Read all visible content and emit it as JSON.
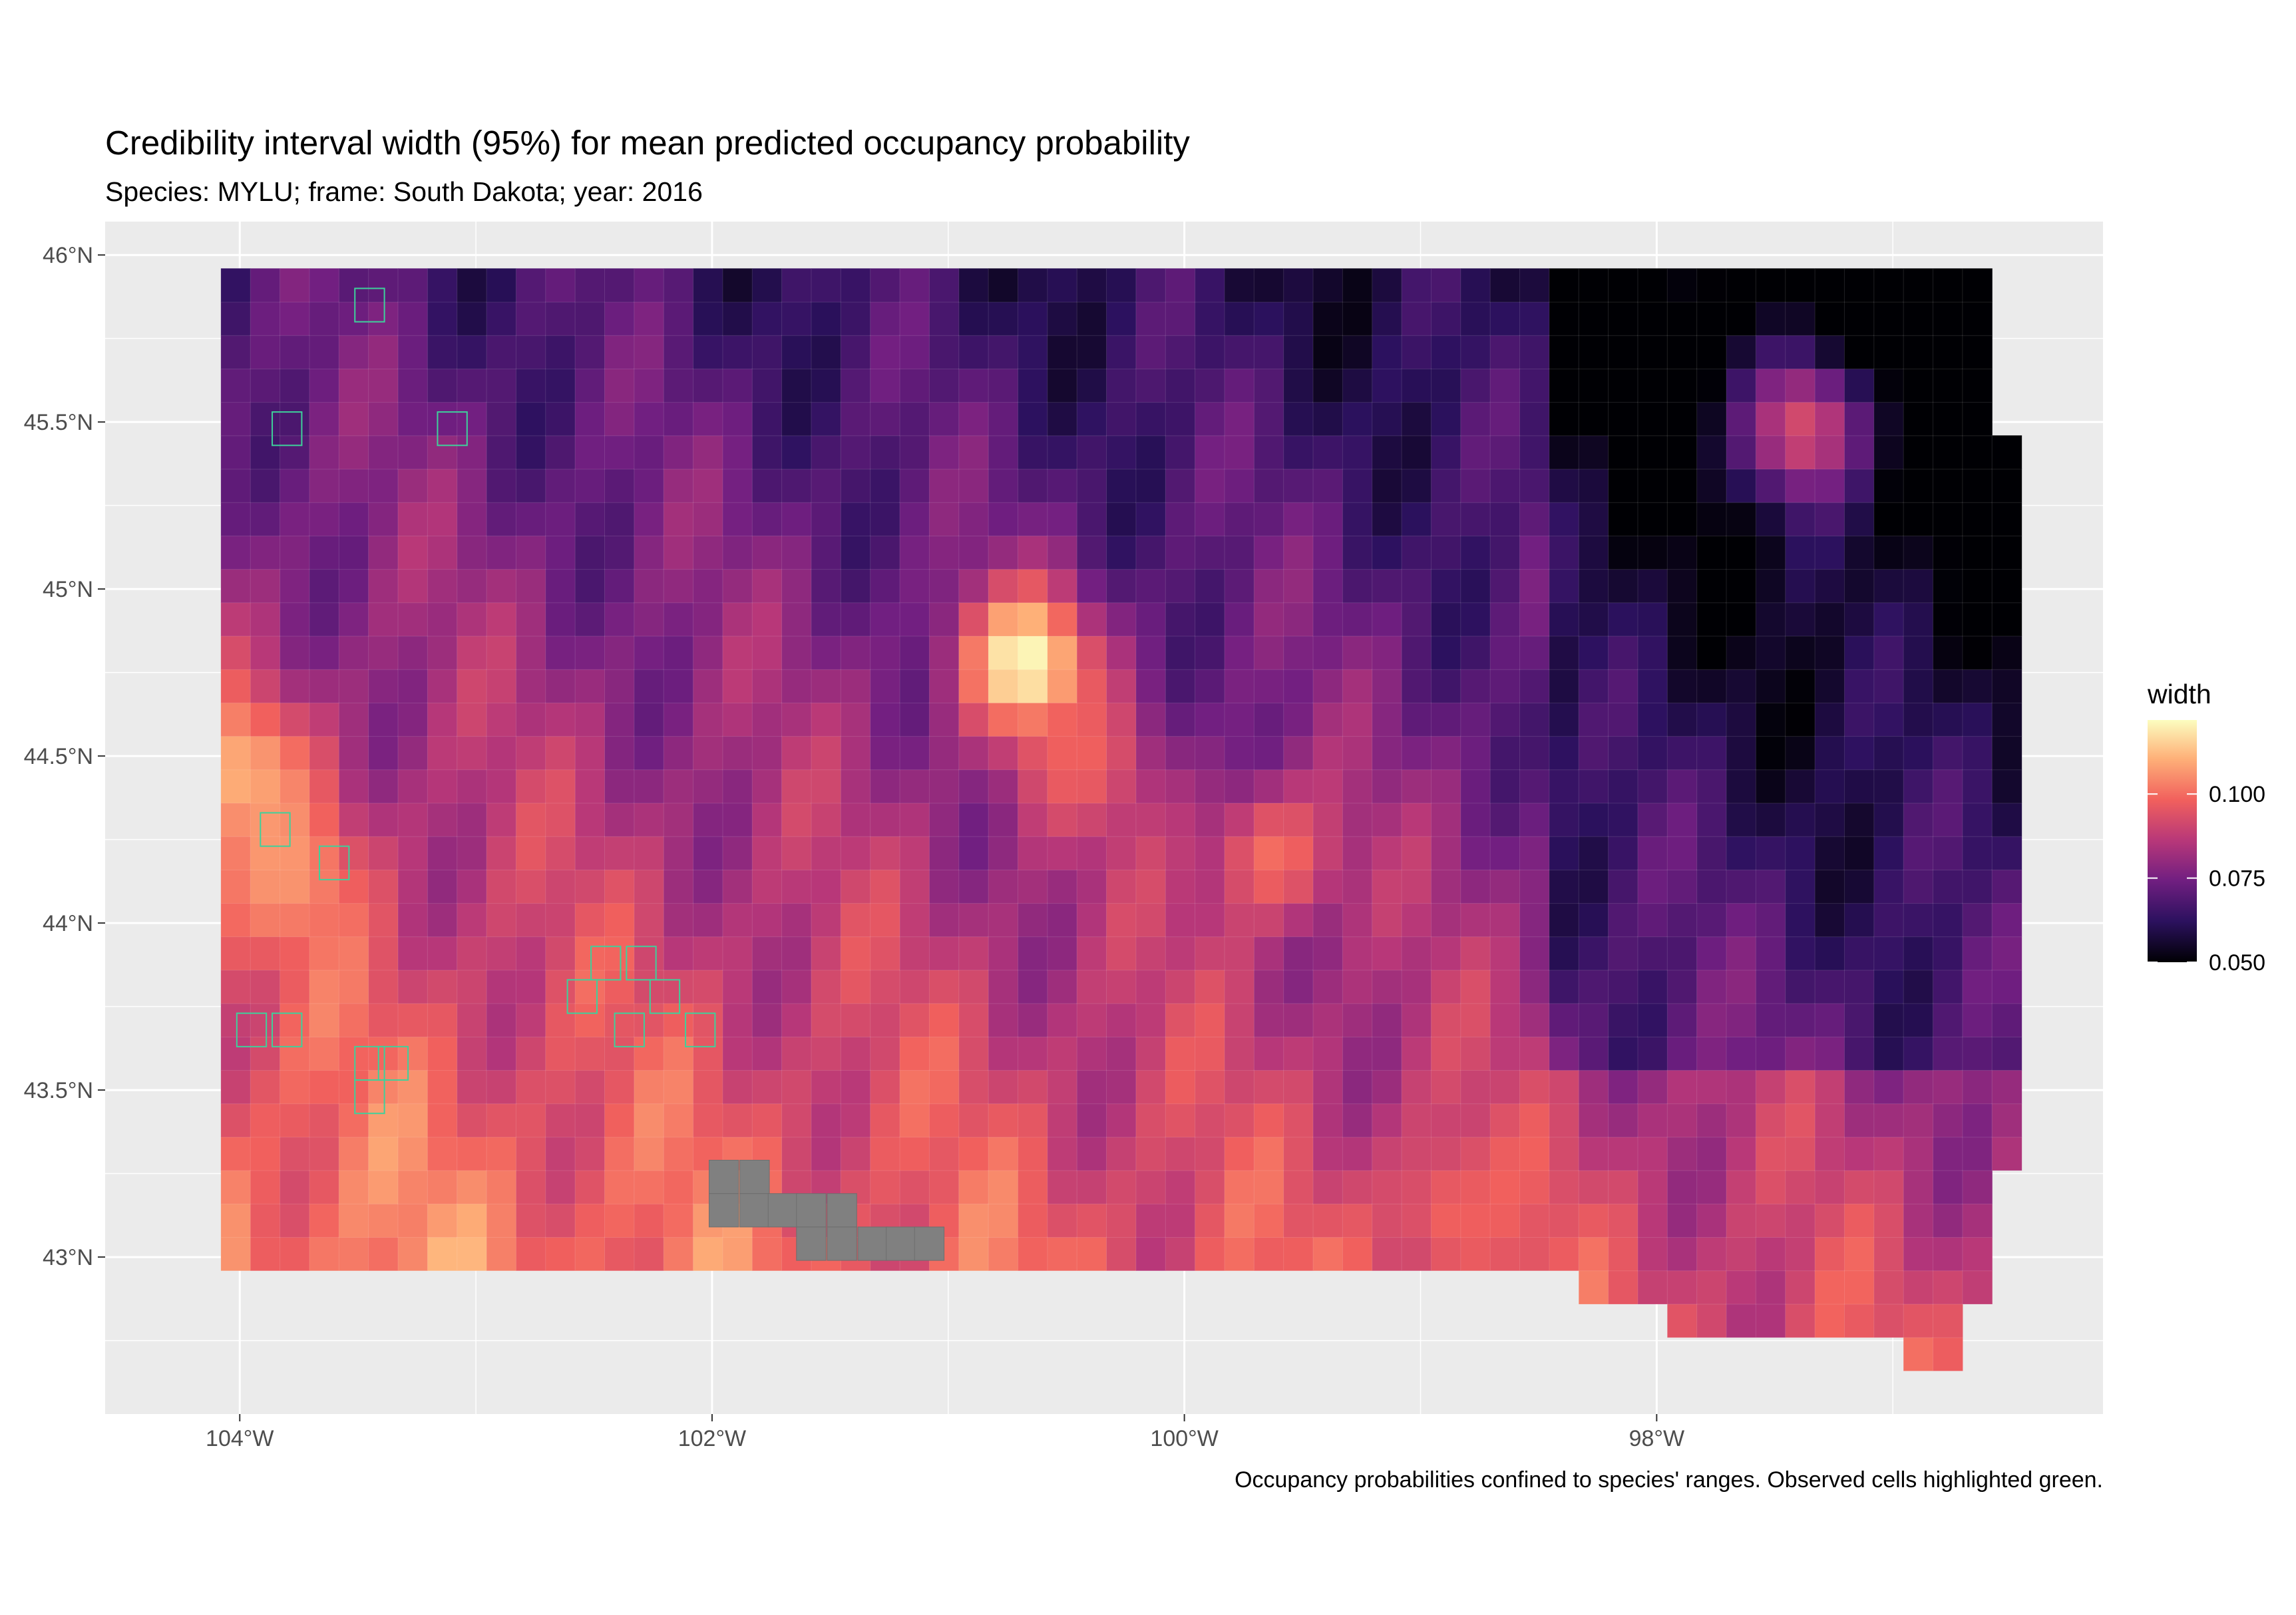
{
  "chart_data": {
    "type": "heatmap",
    "title": "Credibility interval width (95%) for mean predicted occupancy probability",
    "subtitle": "Species: MYLU; frame: South Dakota; year: 2016",
    "caption": "Occupancy probabilities confined to species' ranges. Observed cells highlighted green.",
    "xlabel": "",
    "ylabel": "",
    "x_ticks": [
      "104°W",
      "102°W",
      "100°W",
      "98°W"
    ],
    "x_tick_values": [
      -104,
      -102,
      -100,
      -98
    ],
    "y_ticks": [
      "43°N",
      "43.5°N",
      "44°N",
      "44.5°N",
      "45°N",
      "45.5°N",
      "46°N"
    ],
    "y_tick_values": [
      43,
      43.5,
      44,
      44.5,
      45,
      45.5,
      46
    ],
    "xlim": [
      -104.57,
      -96.11
    ],
    "ylim": [
      42.53,
      46.1
    ],
    "grid": true,
    "legend": {
      "title": "width",
      "placement": "right",
      "breaks": [
        "0.100",
        "0.075",
        "0.050"
      ],
      "break_values": [
        0.1,
        0.075,
        0.05
      ],
      "range": [
        0.05,
        0.122
      ]
    },
    "colors": {
      "panel_bg": "#ebebeb",
      "gridline": "#ffffff",
      "observed_outline": "#3ed19b",
      "missing": "#808080",
      "scale": [
        "#000004",
        "#2c115f",
        "#721f81",
        "#b73779",
        "#f1605d",
        "#feb078",
        "#fcfdbf"
      ]
    },
    "cell_size_deg": [
      0.125,
      0.1
    ],
    "hotspots": [
      {
        "lon": -103.8,
        "lat": 44.15,
        "width": 0.106
      },
      {
        "lon": -104.0,
        "lat": 44.45,
        "width": 0.11
      },
      {
        "lon": -100.68,
        "lat": 44.78,
        "width": 0.122
      },
      {
        "lon": -100.45,
        "lat": 44.5,
        "width": 0.098
      },
      {
        "lon": -99.62,
        "lat": 44.2,
        "width": 0.1
      },
      {
        "lon": -98.85,
        "lat": 43.13,
        "width": 0.098
      },
      {
        "lon": -98.55,
        "lat": 43.05,
        "width": 0.095
      },
      {
        "lon": -97.38,
        "lat": 45.48,
        "width": 0.092
      }
    ],
    "observed_cells": [
      [
        -103.45,
        45.85
      ],
      [
        -103.8,
        45.48
      ],
      [
        -103.1,
        45.48
      ],
      [
        -102.45,
        43.88
      ],
      [
        -102.3,
        43.88
      ],
      [
        -102.2,
        43.78
      ],
      [
        -102.55,
        43.78
      ],
      [
        -102.35,
        43.68
      ],
      [
        -102.05,
        43.68
      ],
      [
        -103.95,
        43.68
      ],
      [
        -103.8,
        43.68
      ],
      [
        -103.45,
        43.58
      ],
      [
        -103.35,
        43.58
      ],
      [
        -103.45,
        43.48
      ],
      [
        -103.85,
        44.28
      ],
      [
        -103.6,
        44.18
      ]
    ],
    "missing_cells": [
      [
        -101.95,
        43.24
      ],
      [
        -101.82,
        43.24
      ],
      [
        -101.95,
        43.14
      ],
      [
        -101.82,
        43.14
      ],
      [
        -101.7,
        43.14
      ],
      [
        -101.58,
        43.14
      ],
      [
        -101.45,
        43.14
      ],
      [
        -101.58,
        43.04
      ],
      [
        -101.45,
        43.04
      ],
      [
        -101.32,
        43.04
      ],
      [
        -101.2,
        43.04
      ],
      [
        -101.08,
        43.04
      ]
    ]
  }
}
